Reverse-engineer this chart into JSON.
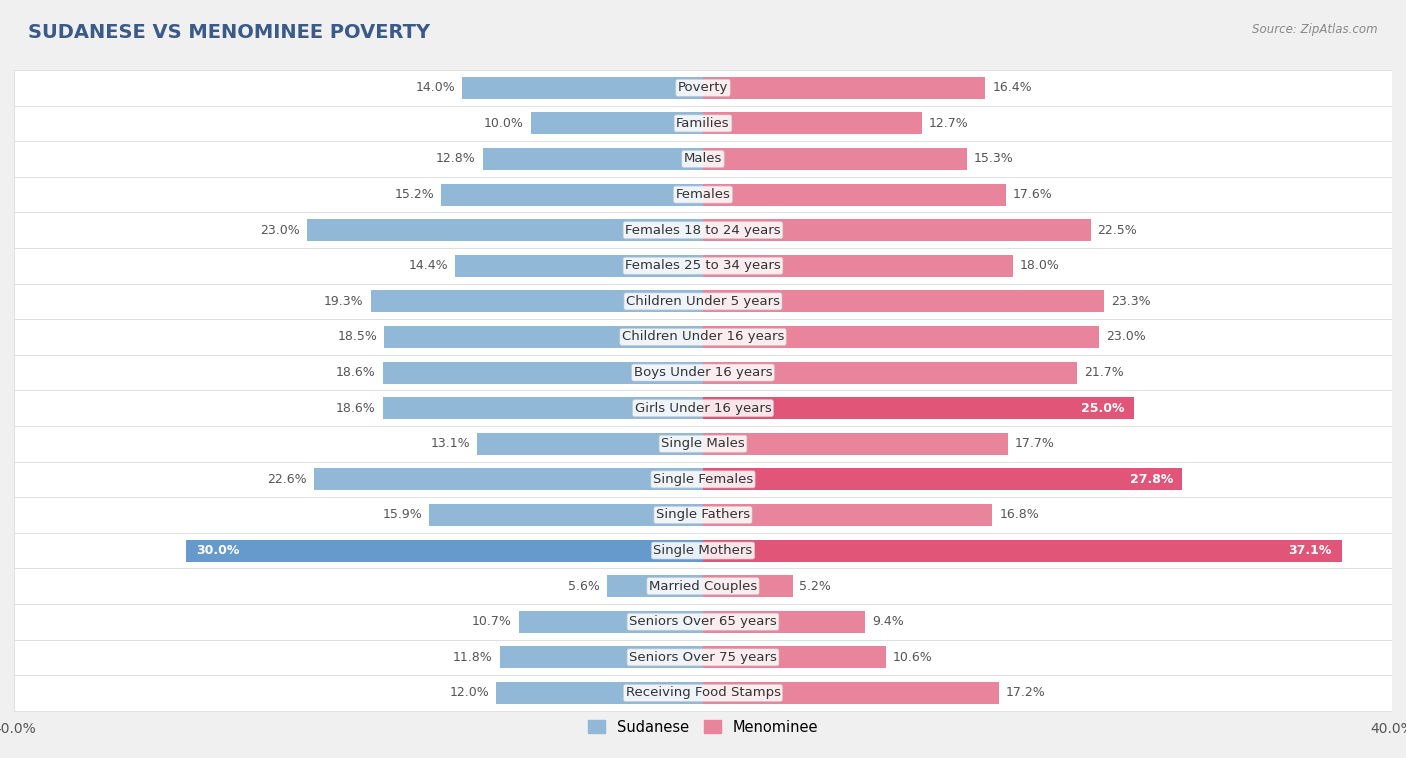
{
  "title": "SUDANESE VS MENOMINEE POVERTY",
  "source": "Source: ZipAtlas.com",
  "categories": [
    "Poverty",
    "Families",
    "Males",
    "Females",
    "Females 18 to 24 years",
    "Females 25 to 34 years",
    "Children Under 5 years",
    "Children Under 16 years",
    "Boys Under 16 years",
    "Girls Under 16 years",
    "Single Males",
    "Single Females",
    "Single Fathers",
    "Single Mothers",
    "Married Couples",
    "Seniors Over 65 years",
    "Seniors Over 75 years",
    "Receiving Food Stamps"
  ],
  "sudanese": [
    14.0,
    10.0,
    12.8,
    15.2,
    23.0,
    14.4,
    19.3,
    18.5,
    18.6,
    18.6,
    13.1,
    22.6,
    15.9,
    30.0,
    5.6,
    10.7,
    11.8,
    12.0
  ],
  "menominee": [
    16.4,
    12.7,
    15.3,
    17.6,
    22.5,
    18.0,
    23.3,
    23.0,
    21.7,
    25.0,
    17.7,
    27.8,
    16.8,
    37.1,
    5.2,
    9.4,
    10.6,
    17.2
  ],
  "sudanese_color": "#92b8d8",
  "menominee_color": "#e8849c",
  "sudanese_highlight_color": "#6699cc",
  "menominee_highlight_color": "#e05578",
  "axis_max": 40.0,
  "bg_color": "#f0f0f0",
  "row_light": "#ffffff",
  "row_separator": "#d8d8d8",
  "label_fontsize": 9.5,
  "title_fontsize": 14,
  "value_fontsize": 9.0
}
